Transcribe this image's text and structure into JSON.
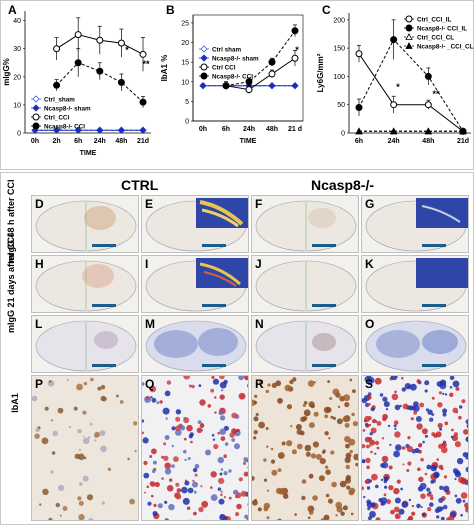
{
  "chart_data": [
    {
      "panel": "A",
      "type": "line",
      "ylabel": "mIgG%",
      "xlabel": "TIME",
      "categories": [
        "0h",
        "2h",
        "6h",
        "24h",
        "48h",
        "21d"
      ],
      "ylim": [
        0,
        42
      ],
      "yticks": [
        0,
        10,
        20,
        30,
        40
      ],
      "series": [
        {
          "name": "Ctrl_sham",
          "style": "dashed-open-diamond",
          "color": "#3b5bd6",
          "values": [
            1,
            1,
            1,
            1,
            1,
            1
          ]
        },
        {
          "name": "Ncasp8-/- sham",
          "style": "solid-diamond",
          "color": "#1a2fbf",
          "values": [
            1,
            1,
            1,
            1,
            1,
            1
          ]
        },
        {
          "name": "Ctrl_CCI",
          "style": "solid-open-circle",
          "color": "#000000",
          "values": [
            null,
            30,
            35,
            33,
            32,
            28
          ]
        },
        {
          "name": "Ncasp8-/- CCI",
          "style": "dashed-filled-circle",
          "color": "#000000",
          "values": [
            null,
            17,
            25,
            22,
            18,
            11
          ]
        }
      ],
      "error": {
        "Ctrl_CCI": [
          null,
          4,
          6,
          5,
          5,
          6
        ],
        "Ncasp8-/- CCI": [
          null,
          2,
          5,
          3,
          3,
          2
        ]
      },
      "annotations": [
        "*",
        "**"
      ]
    },
    {
      "panel": "B",
      "type": "line",
      "ylabel": "IbA1 %",
      "xlabel": "TIME",
      "categories": [
        "0h",
        "6h",
        "24h",
        "48h",
        "21 d"
      ],
      "ylim": [
        0,
        26
      ],
      "yticks": [
        0,
        5,
        10,
        15,
        20,
        25
      ],
      "series": [
        {
          "name": "Ctrl sham",
          "style": "dashed-open-diamond",
          "color": "#3b5bd6",
          "values": [
            9,
            9,
            9,
            9,
            9
          ]
        },
        {
          "name": "Ncasp8-/- sham",
          "style": "solid-diamond",
          "color": "#1a2fbf",
          "values": [
            9,
            9,
            9,
            9,
            9
          ]
        },
        {
          "name": "Ctrl CCI",
          "style": "solid-open-circle",
          "color": "#000000",
          "values": [
            null,
            9,
            8,
            12,
            16
          ]
        },
        {
          "name": "Ncasp8-/- CCI",
          "style": "dashed-filled-circle",
          "color": "#000000",
          "values": [
            null,
            9,
            10,
            15,
            23
          ]
        }
      ],
      "error": {
        "Ctrl CCI": [
          null,
          1,
          1,
          1,
          2
        ],
        "Ncasp8-/- CCI": [
          null,
          1,
          1,
          1,
          1.5
        ]
      },
      "annotations": [
        "*"
      ]
    },
    {
      "panel": "C",
      "type": "line",
      "ylabel": "Ly6G/mm²",
      "categories": [
        "6h",
        "24h",
        "48h",
        "21d"
      ],
      "ylim": [
        0,
        205
      ],
      "yticks": [
        0,
        50,
        100,
        150,
        200
      ],
      "series": [
        {
          "name": "Ctrl_CCI_IL",
          "style": "solid-open-circle",
          "color": "#000000",
          "values": [
            140,
            50,
            50,
            3
          ]
        },
        {
          "name": "Ncasp8-/- CCI_IL",
          "style": "dashed-filled-circle",
          "color": "#000000",
          "values": [
            45,
            165,
            100,
            3
          ]
        },
        {
          "name": "Ctrl_CCI_CL",
          "style": "dashed-open-triangle",
          "color": "#000000",
          "values": [
            3,
            3,
            3,
            3
          ]
        },
        {
          "name": "Ncasp8-/- _CCI_CL",
          "style": "dashed-filled-triangle",
          "color": "#000000",
          "values": [
            3,
            3,
            3,
            3
          ]
        }
      ],
      "error": {
        "Ctrl_CCI_IL": [
          15,
          15,
          8,
          2
        ],
        "Ncasp8-/- CCI_IL": [
          15,
          35,
          15,
          2
        ]
      },
      "annotations": [
        "*",
        "**"
      ]
    }
  ],
  "panel_letters_top": [
    "A",
    "B",
    "C"
  ],
  "micrographs": {
    "col_headers": [
      "CTRL",
      "Ncasp8-/-"
    ],
    "row_labels": [
      "mIgG 48 h after CCI",
      "mIgG 21 days after CCI",
      "IbA1"
    ],
    "panels": [
      "D",
      "E",
      "F",
      "G",
      "H",
      "I",
      "J",
      "K",
      "L",
      "M",
      "N",
      "O",
      "P",
      "Q",
      "R",
      "S"
    ]
  }
}
